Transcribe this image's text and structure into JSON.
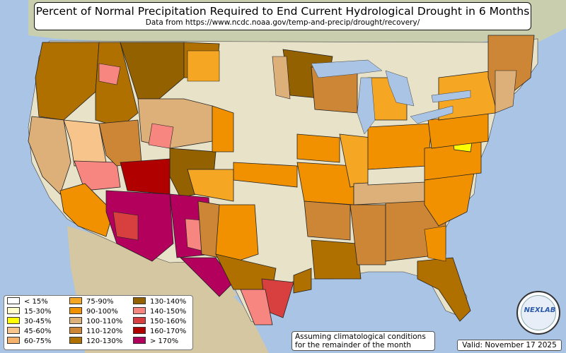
{
  "title": {
    "main": "Percent of Normal Precipitation Required to End Current Hydrological Drought in 6 Months",
    "sub": "Data from https://www.ncdc.noaa.gov/temp-and-precip/drought/recovery/"
  },
  "legend": [
    {
      "label": "< 15%",
      "color": "#ffffff"
    },
    {
      "label": "15-30%",
      "color": "#ffffcc"
    },
    {
      "label": "30-45%",
      "color": "#ffff00"
    },
    {
      "label": "45-60%",
      "color": "#f7c58c"
    },
    {
      "label": "60-75%",
      "color": "#f6b26b"
    },
    {
      "label": "75-90%",
      "color": "#f5a623"
    },
    {
      "label": "90-100%",
      "color": "#f29100"
    },
    {
      "label": "100-110%",
      "color": "#ddb07a"
    },
    {
      "label": "110-120%",
      "color": "#cd8636"
    },
    {
      "label": "120-130%",
      "color": "#b07000"
    },
    {
      "label": "130-140%",
      "color": "#936100"
    },
    {
      "label": "140-150%",
      "color": "#f78580"
    },
    {
      "label": "150-160%",
      "color": "#d84040"
    },
    {
      "label": "160-170%",
      "color": "#b00000"
    },
    {
      "label": "> 170%",
      "color": "#b2005c"
    }
  ],
  "note": {
    "line1": "Assuming climatological conditions",
    "line2": "for the remainder of the month"
  },
  "valid": "Valid: November 17 2025",
  "logo_text": "NEXLAB",
  "colors": {
    "ocean": "#a9c4e4",
    "land": "#d9dcc0",
    "neutral": "#e8e2c8",
    "green": "#b7c79a",
    "border": "#222222"
  }
}
